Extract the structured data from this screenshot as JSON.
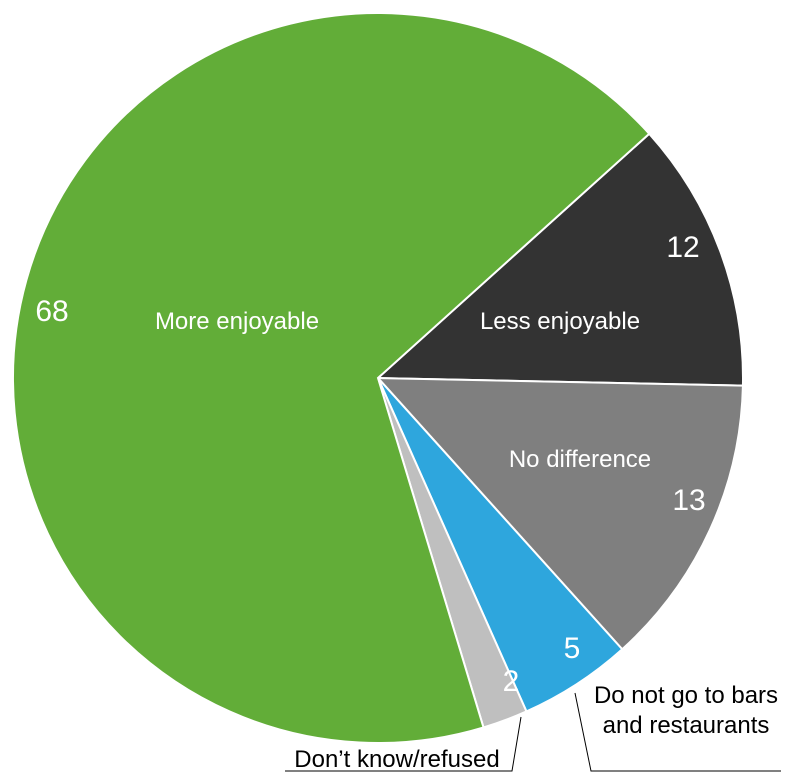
{
  "chart_data": {
    "type": "pie",
    "title": "",
    "slices": [
      {
        "label": "Less enjoyable",
        "value": 12,
        "color": "#333333"
      },
      {
        "label": "No difference",
        "value": 13,
        "color": "#7f7f7f"
      },
      {
        "label": "Do not go to bars and restaurants",
        "value": 5,
        "color": "#2ea6dd"
      },
      {
        "label": "Don’t know/refused",
        "value": 2,
        "color": "#bfbfbf"
      },
      {
        "label": "More enjoyable",
        "value": 68,
        "color": "#62ad38"
      }
    ],
    "value_labels": [
      "12",
      "13",
      "5",
      "2",
      "68"
    ],
    "category_labels": {
      "less": "Less enjoyable",
      "no_diff": "No difference",
      "more": "More enjoyable",
      "dnbr_line1": "Do not go to bars",
      "dnbr_line2": "and restaurants",
      "dk": "Don’t know/refused"
    }
  }
}
